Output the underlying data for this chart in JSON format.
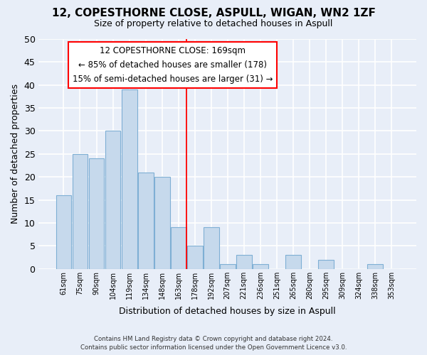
{
  "title": "12, COPESTHORNE CLOSE, ASPULL, WIGAN, WN2 1ZF",
  "subtitle": "Size of property relative to detached houses in Aspull",
  "xlabel": "Distribution of detached houses by size in Aspull",
  "ylabel": "Number of detached properties",
  "bar_color": "#c6d9ec",
  "bar_edge_color": "#7eafd4",
  "background_color": "#e8eef8",
  "grid_color": "white",
  "categories": [
    "61sqm",
    "75sqm",
    "90sqm",
    "104sqm",
    "119sqm",
    "134sqm",
    "148sqm",
    "163sqm",
    "178sqm",
    "192sqm",
    "207sqm",
    "221sqm",
    "236sqm",
    "251sqm",
    "265sqm",
    "280sqm",
    "295sqm",
    "309sqm",
    "324sqm",
    "338sqm",
    "353sqm"
  ],
  "values": [
    16,
    25,
    24,
    30,
    39,
    21,
    20,
    9,
    5,
    9,
    1,
    3,
    1,
    0,
    3,
    0,
    2,
    0,
    0,
    1,
    0
  ],
  "ylim": [
    0,
    50
  ],
  "yticks": [
    0,
    5,
    10,
    15,
    20,
    25,
    30,
    35,
    40,
    45,
    50
  ],
  "annotation_title": "12 COPESTHORNE CLOSE: 169sqm",
  "annotation_line1": "← 85% of detached houses are smaller (178)",
  "annotation_line2": "15% of semi-detached houses are larger (31) →",
  "footer_line1": "Contains HM Land Registry data © Crown copyright and database right 2024.",
  "footer_line2": "Contains public sector information licensed under the Open Government Licence v3.0."
}
